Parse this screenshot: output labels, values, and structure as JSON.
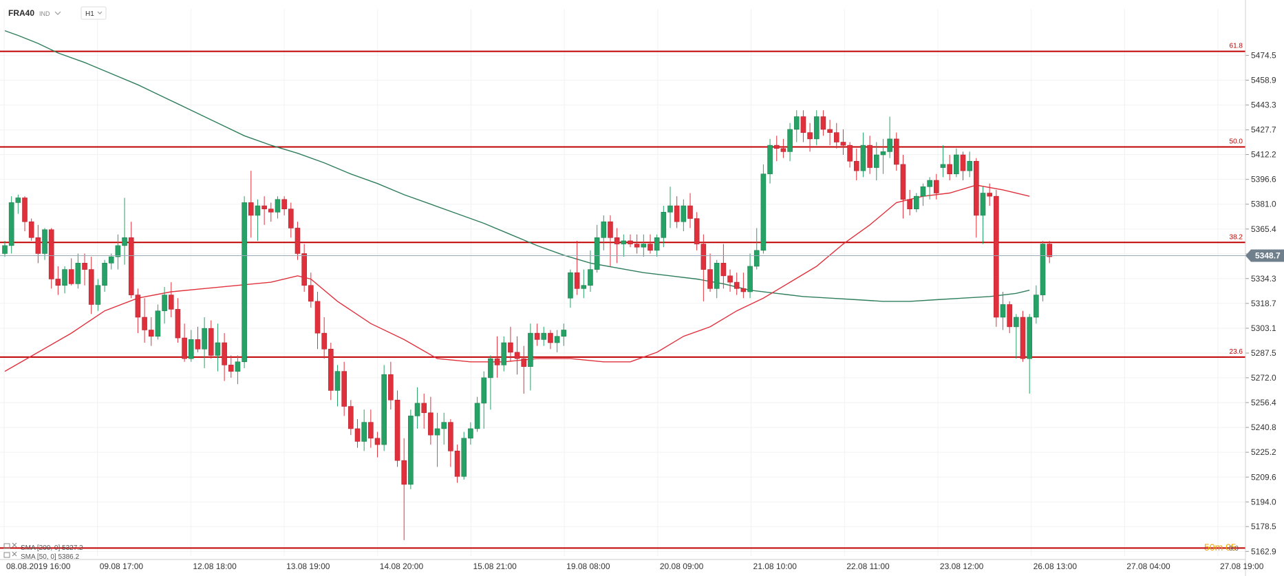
{
  "header": {
    "symbol": "FRA40",
    "market": "IND",
    "timeframe": "H1"
  },
  "colors": {
    "up": "#26a266",
    "down": "#e0303c",
    "sma200": "#2e7d5b",
    "sma50": "#e0303c",
    "fib": "#c00000",
    "grid": "#f2f2f2",
    "price_badge": "#707f8c",
    "countdown": "#f0a500"
  },
  "price_label": "5348.7",
  "countdown": "50m 05",
  "countdown_tail": "0.0",
  "legend": [
    {
      "label": "SMA [200, 0] 5327.2",
      "color": "#2e7d5b"
    },
    {
      "label": "SMA [50, 0] 5386.2",
      "color": "#e0303c"
    }
  ],
  "fib_levels": [
    {
      "label": "61.8",
      "price": 5477
    },
    {
      "label": "50.0",
      "price": 5417
    },
    {
      "label": "38.2",
      "price": 5357
    },
    {
      "label": "23.6",
      "price": 5285
    },
    {
      "label": "0.0",
      "price": 5165
    }
  ],
  "chart_data": {
    "type": "candlestick",
    "ylim": [
      5160,
      5495
    ],
    "y_ticks": [
      "5474.5",
      "5458.9",
      "5443.3",
      "5427.7",
      "5412.2",
      "5396.6",
      "5381.0",
      "5365.4",
      "5349.8",
      "5334.3",
      "5318.7",
      "5303.1",
      "5287.5",
      "5272.0",
      "5256.4",
      "5240.8",
      "5225.2",
      "5209.6",
      "5194.0",
      "5178.5",
      "5162.9"
    ],
    "x_ticks": [
      "08.08.2019 16:00",
      "09.08 17:00",
      "12.08 18:00",
      "13.08 19:00",
      "14.08 20:00",
      "15.08 21:00",
      "19.08 08:00",
      "20.08 09:00",
      "21.08 10:00",
      "22.08 11:00",
      "23.08 12:00",
      "26.08 13:00",
      "27.08 04:00",
      "27.08 19:00"
    ],
    "last_price": 5348.7,
    "candles": [
      [
        5350,
        5358,
        5348,
        5355
      ],
      [
        5355,
        5386,
        5350,
        5382
      ],
      [
        5382,
        5387,
        5375,
        5385
      ],
      [
        5385,
        5386,
        5364,
        5370
      ],
      [
        5370,
        5372,
        5358,
        5360
      ],
      [
        5360,
        5368,
        5344,
        5350
      ],
      [
        5350,
        5366,
        5346,
        5365
      ],
      [
        5365,
        5366,
        5328,
        5334
      ],
      [
        5334,
        5342,
        5324,
        5330
      ],
      [
        5330,
        5342,
        5325,
        5340
      ],
      [
        5340,
        5347,
        5330,
        5331
      ],
      [
        5331,
        5350,
        5328,
        5344
      ],
      [
        5344,
        5350,
        5330,
        5340
      ],
      [
        5340,
        5348,
        5312,
        5318
      ],
      [
        5318,
        5334,
        5314,
        5330
      ],
      [
        5330,
        5346,
        5326,
        5344
      ],
      [
        5344,
        5350,
        5340,
        5348
      ],
      [
        5348,
        5362,
        5340,
        5355
      ],
      [
        5355,
        5385,
        5343,
        5360
      ],
      [
        5360,
        5370,
        5322,
        5324
      ],
      [
        5324,
        5328,
        5300,
        5310
      ],
      [
        5310,
        5322,
        5294,
        5302
      ],
      [
        5302,
        5310,
        5292,
        5298
      ],
      [
        5298,
        5318,
        5296,
        5314
      ],
      [
        5314,
        5329,
        5306,
        5324
      ],
      [
        5324,
        5332,
        5310,
        5315
      ],
      [
        5315,
        5322,
        5294,
        5297
      ],
      [
        5297,
        5306,
        5282,
        5284
      ],
      [
        5284,
        5302,
        5282,
        5296
      ],
      [
        5296,
        5304,
        5288,
        5290
      ],
      [
        5290,
        5310,
        5278,
        5303
      ],
      [
        5303,
        5308,
        5284,
        5286
      ],
      [
        5286,
        5306,
        5276,
        5294
      ],
      [
        5294,
        5300,
        5270,
        5280
      ],
      [
        5280,
        5286,
        5272,
        5276
      ],
      [
        5276,
        5286,
        5268,
        5282
      ],
      [
        5282,
        5386,
        5278,
        5382
      ],
      [
        5382,
        5402,
        5360,
        5374
      ],
      [
        5374,
        5384,
        5358,
        5380
      ],
      [
        5380,
        5386,
        5368,
        5378
      ],
      [
        5378,
        5382,
        5370,
        5376
      ],
      [
        5376,
        5386,
        5372,
        5384
      ],
      [
        5384,
        5386,
        5374,
        5378
      ],
      [
        5378,
        5382,
        5360,
        5366
      ],
      [
        5366,
        5370,
        5346,
        5350
      ],
      [
        5350,
        5356,
        5326,
        5330
      ],
      [
        5330,
        5338,
        5316,
        5320
      ],
      [
        5320,
        5326,
        5290,
        5300
      ],
      [
        5300,
        5310,
        5284,
        5290
      ],
      [
        5290,
        5294,
        5258,
        5264
      ],
      [
        5264,
        5280,
        5254,
        5276
      ],
      [
        5276,
        5282,
        5248,
        5254
      ],
      [
        5254,
        5258,
        5236,
        5240
      ],
      [
        5240,
        5246,
        5228,
        5232
      ],
      [
        5232,
        5252,
        5226,
        5244
      ],
      [
        5244,
        5252,
        5228,
        5234
      ],
      [
        5234,
        5238,
        5222,
        5230
      ],
      [
        5230,
        5280,
        5226,
        5274
      ],
      [
        5274,
        5282,
        5252,
        5258
      ],
      [
        5258,
        5264,
        5216,
        5220
      ],
      [
        5220,
        5234,
        5170,
        5205
      ],
      [
        5205,
        5252,
        5202,
        5248
      ],
      [
        5248,
        5266,
        5240,
        5256
      ],
      [
        5256,
        5262,
        5240,
        5250
      ],
      [
        5250,
        5260,
        5230,
        5236
      ],
      [
        5236,
        5250,
        5216,
        5240
      ],
      [
        5240,
        5250,
        5230,
        5244
      ],
      [
        5244,
        5246,
        5216,
        5226
      ],
      [
        5226,
        5230,
        5206,
        5210
      ],
      [
        5210,
        5238,
        5208,
        5234
      ],
      [
        5234,
        5244,
        5230,
        5240
      ],
      [
        5240,
        5260,
        5238,
        5256
      ],
      [
        5256,
        5276,
        5240,
        5272
      ],
      [
        5272,
        5286,
        5252,
        5284
      ],
      [
        5284,
        5298,
        5272,
        5280
      ],
      [
        5280,
        5298,
        5276,
        5294
      ],
      [
        5294,
        5304,
        5282,
        5288
      ],
      [
        5288,
        5298,
        5274,
        5284
      ],
      [
        5284,
        5292,
        5262,
        5279
      ],
      [
        5279,
        5306,
        5264,
        5300
      ],
      [
        5300,
        5306,
        5292,
        5296
      ],
      [
        5296,
        5304,
        5292,
        5300
      ],
      [
        5300,
        5302,
        5290,
        5294
      ],
      [
        5294,
        5302,
        5288,
        5298
      ],
      [
        5298,
        5306,
        5292,
        5302
      ],
      [
        5322,
        5340,
        5316,
        5338
      ],
      [
        5338,
        5358,
        5324,
        5328
      ],
      [
        5328,
        5340,
        5322,
        5330
      ],
      [
        5330,
        5352,
        5326,
        5340
      ],
      [
        5340,
        5368,
        5338,
        5360
      ],
      [
        5360,
        5374,
        5352,
        5370
      ],
      [
        5370,
        5374,
        5342,
        5360
      ],
      [
        5360,
        5366,
        5344,
        5356
      ],
      [
        5356,
        5362,
        5348,
        5358
      ],
      [
        5358,
        5362,
        5354,
        5356
      ],
      [
        5356,
        5362,
        5350,
        5354
      ],
      [
        5354,
        5362,
        5348,
        5356
      ],
      [
        5356,
        5362,
        5350,
        5352
      ],
      [
        5352,
        5362,
        5348,
        5360
      ],
      [
        5360,
        5380,
        5354,
        5376
      ],
      [
        5376,
        5392,
        5366,
        5380
      ],
      [
        5380,
        5386,
        5366,
        5370
      ],
      [
        5370,
        5384,
        5364,
        5380
      ],
      [
        5380,
        5388,
        5366,
        5372
      ],
      [
        5372,
        5376,
        5352,
        5356
      ],
      [
        5356,
        5362,
        5320,
        5340
      ],
      [
        5340,
        5350,
        5326,
        5328
      ],
      [
        5328,
        5346,
        5322,
        5344
      ],
      [
        5344,
        5356,
        5328,
        5336
      ],
      [
        5336,
        5340,
        5326,
        5332
      ],
      [
        5332,
        5338,
        5324,
        5328
      ],
      [
        5328,
        5338,
        5322,
        5326
      ],
      [
        5326,
        5350,
        5322,
        5342
      ],
      [
        5342,
        5366,
        5340,
        5352
      ],
      [
        5352,
        5406,
        5350,
        5400
      ],
      [
        5400,
        5422,
        5394,
        5418
      ],
      [
        5418,
        5424,
        5408,
        5416
      ],
      [
        5416,
        5422,
        5410,
        5414
      ],
      [
        5414,
        5432,
        5408,
        5428
      ],
      [
        5428,
        5440,
        5420,
        5436
      ],
      [
        5436,
        5440,
        5420,
        5426
      ],
      [
        5426,
        5432,
        5414,
        5422
      ],
      [
        5422,
        5440,
        5418,
        5436
      ],
      [
        5436,
        5440,
        5424,
        5428
      ],
      [
        5428,
        5434,
        5418,
        5426
      ],
      [
        5426,
        5432,
        5416,
        5420
      ],
      [
        5420,
        5428,
        5412,
        5418
      ],
      [
        5418,
        5420,
        5404,
        5408
      ],
      [
        5408,
        5416,
        5396,
        5402
      ],
      [
        5402,
        5426,
        5398,
        5418
      ],
      [
        5418,
        5424,
        5400,
        5404
      ],
      [
        5404,
        5420,
        5396,
        5412
      ],
      [
        5412,
        5422,
        5400,
        5414
      ],
      [
        5414,
        5436,
        5410,
        5422
      ],
      [
        5422,
        5426,
        5402,
        5406
      ],
      [
        5406,
        5412,
        5372,
        5384
      ],
      [
        5384,
        5390,
        5374,
        5378
      ],
      [
        5378,
        5388,
        5376,
        5386
      ],
      [
        5386,
        5394,
        5380,
        5392
      ],
      [
        5392,
        5398,
        5384,
        5396
      ],
      [
        5396,
        5400,
        5384,
        5388
      ],
      [
        5404,
        5418,
        5398,
        5406
      ],
      [
        5406,
        5412,
        5396,
        5400
      ],
      [
        5400,
        5416,
        5398,
        5412
      ],
      [
        5412,
        5414,
        5396,
        5402
      ],
      [
        5402,
        5414,
        5398,
        5408
      ],
      [
        5408,
        5410,
        5360,
        5374
      ],
      [
        5374,
        5392,
        5356,
        5388
      ],
      [
        5388,
        5394,
        5380,
        5386
      ],
      [
        5386,
        5390,
        5304,
        5310
      ],
      [
        5310,
        5326,
        5302,
        5318
      ],
      [
        5318,
        5320,
        5300,
        5304
      ],
      [
        5304,
        5312,
        5284,
        5310
      ],
      [
        5310,
        5314,
        5282,
        5284
      ],
      [
        5284,
        5312,
        5262,
        5310
      ],
      [
        5310,
        5330,
        5306,
        5324
      ],
      [
        5324,
        5358,
        5320,
        5356
      ],
      [
        5356,
        5358,
        5344,
        5348
      ]
    ],
    "sma200": [
      [
        0,
        5490
      ],
      [
        2,
        5487
      ],
      [
        5,
        5482
      ],
      [
        8,
        5476
      ],
      [
        12,
        5470
      ],
      [
        16,
        5463
      ],
      [
        20,
        5456
      ],
      [
        24,
        5448
      ],
      [
        28,
        5440
      ],
      [
        32,
        5432
      ],
      [
        36,
        5424
      ],
      [
        40,
        5418
      ],
      [
        44,
        5413
      ],
      [
        48,
        5407
      ],
      [
        52,
        5400
      ],
      [
        56,
        5394
      ],
      [
        60,
        5387
      ],
      [
        64,
        5381
      ],
      [
        68,
        5375
      ],
      [
        72,
        5369
      ],
      [
        76,
        5362
      ],
      [
        80,
        5355
      ],
      [
        84,
        5349
      ],
      [
        88,
        5344
      ],
      [
        92,
        5341
      ],
      [
        96,
        5338
      ],
      [
        100,
        5336
      ],
      [
        104,
        5334
      ],
      [
        108,
        5331
      ],
      [
        112,
        5327
      ],
      [
        116,
        5325
      ],
      [
        120,
        5323
      ],
      [
        124,
        5322
      ],
      [
        128,
        5321
      ],
      [
        132,
        5320
      ],
      [
        136,
        5320
      ],
      [
        140,
        5321
      ],
      [
        144,
        5322
      ],
      [
        148,
        5323
      ],
      [
        152,
        5325
      ],
      [
        154,
        5327
      ]
    ],
    "sma50": [
      [
        0,
        5276
      ],
      [
        5,
        5288
      ],
      [
        10,
        5300
      ],
      [
        15,
        5314
      ],
      [
        20,
        5322
      ],
      [
        25,
        5326
      ],
      [
        30,
        5328
      ],
      [
        35,
        5330
      ],
      [
        40,
        5332
      ],
      [
        44,
        5336
      ],
      [
        46,
        5334
      ],
      [
        50,
        5320
      ],
      [
        55,
        5306
      ],
      [
        60,
        5296
      ],
      [
        65,
        5284
      ],
      [
        70,
        5282
      ],
      [
        75,
        5282
      ],
      [
        80,
        5284
      ],
      [
        85,
        5284
      ],
      [
        90,
        5282
      ],
      [
        94,
        5282
      ],
      [
        98,
        5288
      ],
      [
        102,
        5298
      ],
      [
        106,
        5304
      ],
      [
        110,
        5314
      ],
      [
        114,
        5322
      ],
      [
        118,
        5332
      ],
      [
        122,
        5342
      ],
      [
        126,
        5356
      ],
      [
        130,
        5368
      ],
      [
        134,
        5382
      ],
      [
        138,
        5386
      ],
      [
        142,
        5388
      ],
      [
        146,
        5393
      ],
      [
        150,
        5390
      ],
      [
        154,
        5386
      ]
    ]
  }
}
